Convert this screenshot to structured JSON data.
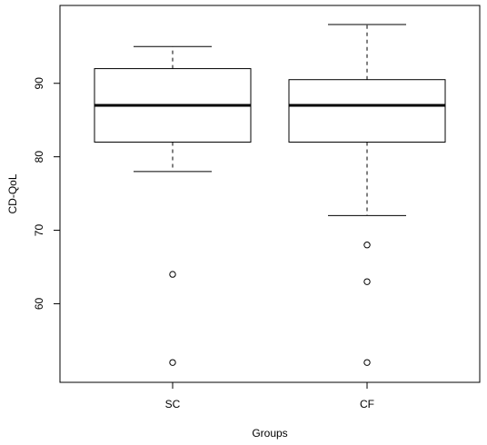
{
  "chart_data": {
    "type": "boxplot",
    "title": "",
    "xlabel": "Groups",
    "ylabel": "CD-QoL",
    "ylim": [
      49.3,
      100.6
    ],
    "yticks": [
      60,
      70,
      80,
      90
    ],
    "categories": [
      "SC",
      "CF"
    ],
    "series": [
      {
        "group": "SC",
        "whisker_low": 78,
        "q1": 82,
        "median": 87,
        "q3": 92,
        "whisker_high": 95,
        "outliers": [
          64,
          52
        ]
      },
      {
        "group": "CF",
        "whisker_low": 72,
        "q1": 82,
        "median": 87,
        "q3": 90.5,
        "whisker_high": 98,
        "outliers": [
          68,
          63,
          52
        ]
      }
    ],
    "grid": false,
    "legend": "none"
  }
}
